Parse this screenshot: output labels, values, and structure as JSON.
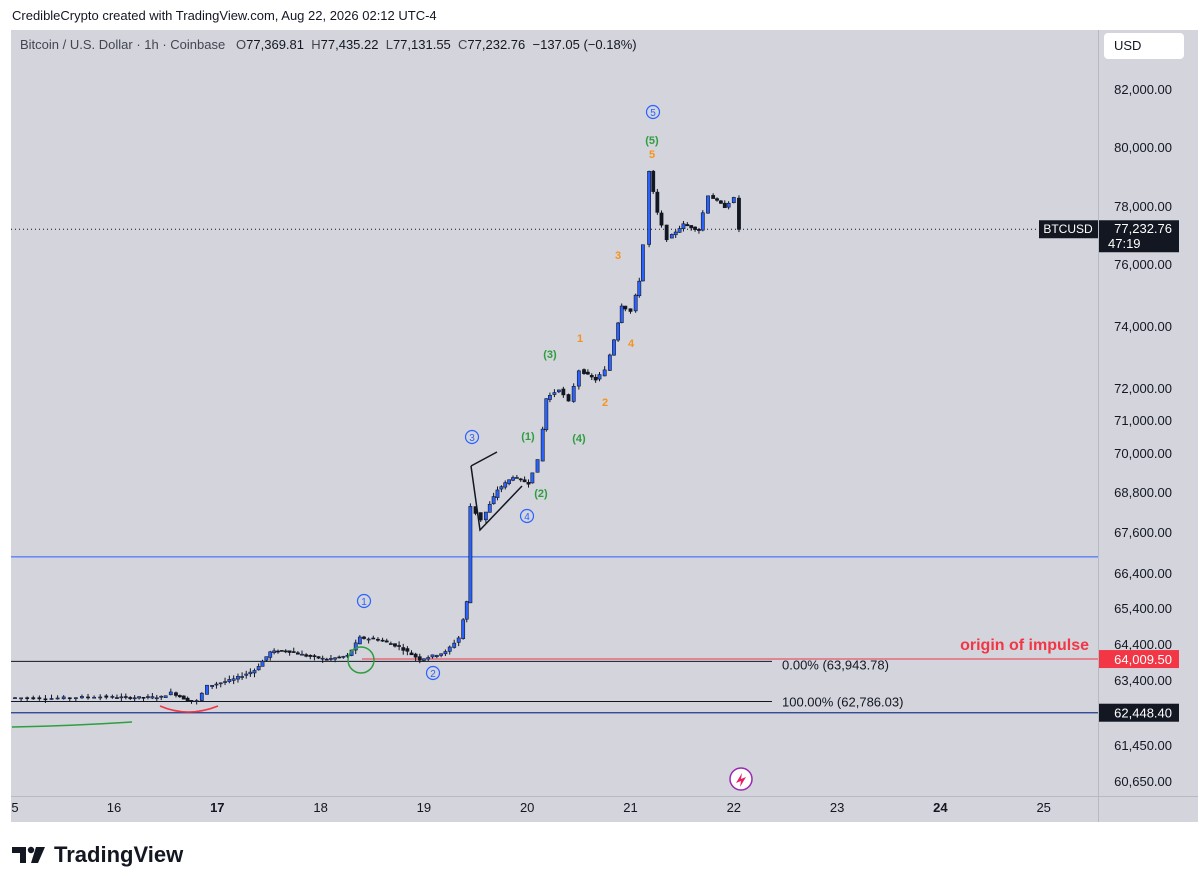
{
  "header": {
    "credit": "CredibleCrypto created with TradingView.com, Aug 22, 2026 02:12 UTC-4"
  },
  "symbol": {
    "name": "Bitcoin / U.S. Dollar · 1h · Coinbase",
    "open_label": "O",
    "open": "77,369.81",
    "high_label": "H",
    "high": "77,435.22",
    "low_label": "L",
    "low": "77,131.55",
    "close_label": "C",
    "close": "77,232.76",
    "change": "−137.05 (−0.18%)"
  },
  "currency_button": "USD",
  "footer": {
    "brand": "TradingView"
  },
  "colors": {
    "plot_bg": "#d3d4dc",
    "up_body": "#2962ff",
    "down_body": "#131722",
    "red": "#f23645",
    "green": "#2e9e3e",
    "blue": "#2962ff",
    "orange": "#f7931a"
  },
  "chart_data": {
    "type": "candlestick",
    "symbol": "BTCUSD",
    "interval": "1h",
    "y_ticks": [
      "82,000.00",
      "80,000.00",
      "78,000.00",
      "76,000.00",
      "74,000.00",
      "72,000.00",
      "71,000.00",
      "70,000.00",
      "68,800.00",
      "67,600.00",
      "66,400.00",
      "65,400.00",
      "64,400.00",
      "63,400.00",
      "61,450.00",
      "60,650.00"
    ],
    "x_ticks": [
      "5",
      "16",
      "17",
      "18",
      "19",
      "20",
      "21",
      "22",
      "23",
      "24",
      "25"
    ],
    "bold_x_ticks": [
      "17",
      "24"
    ],
    "last_price_label": {
      "name": "BTCUSD",
      "price": "77,232.76",
      "countdown": "47:19"
    },
    "price_tags": [
      {
        "price": "64,009.50",
        "color": "#f23645"
      },
      {
        "price": "62,448.40",
        "color": "#131722"
      }
    ],
    "horizontal_lines": [
      {
        "price": 66900,
        "color": "#2962ff"
      },
      {
        "price": 62448.4,
        "color": "#2962ff"
      }
    ],
    "fib_levels": [
      {
        "label": "0.00% (63,943.78)",
        "price": 63943.78
      },
      {
        "label": "100.00% (62,786.03)",
        "price": 62786.03
      }
    ],
    "annotation": "origin of impulse",
    "wave_labels_circled": [
      "1",
      "2",
      "3",
      "4",
      "5"
    ],
    "wave_labels_green": [
      "(1)",
      "(2)",
      "(3)",
      "(4)",
      "(5)"
    ],
    "wave_labels_orange": [
      "1",
      "2",
      "3",
      "4",
      "5"
    ],
    "series_shape": [
      [
        15.3,
        62900
      ],
      [
        15.6,
        62880
      ],
      [
        15.9,
        62930
      ],
      [
        16.2,
        62900
      ],
      [
        16.5,
        62920
      ],
      [
        16.6,
        63050
      ],
      [
        16.75,
        62820
      ],
      [
        16.85,
        62800
      ],
      [
        16.95,
        63250
      ],
      [
        17.2,
        63450
      ],
      [
        17.4,
        63700
      ],
      [
        17.55,
        64200
      ],
      [
        17.7,
        64250
      ],
      [
        17.9,
        64100
      ],
      [
        18.1,
        64000
      ],
      [
        18.3,
        64100
      ],
      [
        18.42,
        64600
      ],
      [
        18.6,
        64550
      ],
      [
        18.8,
        64350
      ],
      [
        19.0,
        64000
      ],
      [
        19.25,
        64200
      ],
      [
        19.38,
        64600
      ],
      [
        19.45,
        65600
      ],
      [
        19.5,
        68400
      ],
      [
        19.6,
        68000
      ],
      [
        19.75,
        68900
      ],
      [
        19.9,
        69300
      ],
      [
        20.05,
        69100
      ],
      [
        20.15,
        69800
      ],
      [
        20.22,
        71700
      ],
      [
        20.35,
        72000
      ],
      [
        20.45,
        71600
      ],
      [
        20.55,
        72600
      ],
      [
        20.7,
        72300
      ],
      [
        20.8,
        72600
      ],
      [
        20.88,
        73600
      ],
      [
        20.95,
        74700
      ],
      [
        21.05,
        74500
      ],
      [
        21.12,
        75500
      ],
      [
        21.18,
        76700
      ],
      [
        21.22,
        79200
      ],
      [
        21.3,
        77800
      ],
      [
        21.4,
        76900
      ],
      [
        21.55,
        77400
      ],
      [
        21.7,
        77200
      ],
      [
        21.8,
        78400
      ],
      [
        21.95,
        78000
      ],
      [
        22.05,
        78300
      ],
      [
        22.1,
        77232.76
      ]
    ]
  }
}
